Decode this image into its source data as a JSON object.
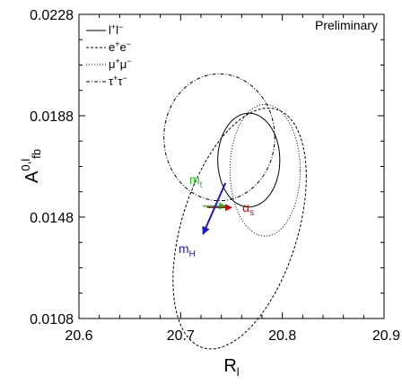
{
  "chart_data": {
    "type": "contour",
    "note": "Preliminary",
    "xlabel": "R_l",
    "ylabel": "A^{0,l}_{fb}",
    "xlim": [
      20.6,
      20.9
    ],
    "ylim": [
      0.0108,
      0.0228
    ],
    "xticks": [
      20.6,
      20.7,
      20.8,
      20.9
    ],
    "yticks": [
      0.0108,
      0.0148,
      0.0188,
      0.0228
    ],
    "xtick_labels": [
      "20.6",
      "20.7",
      "20.8",
      "20.9"
    ],
    "ytick_labels": [
      "0.0108",
      "0.0148",
      "0.0188",
      "0.0228"
    ],
    "legend_position": "top-left",
    "series": [
      {
        "name": "l+l−",
        "style": "solid",
        "center": [
          20.767,
          0.01705
        ],
        "semi_axes": [
          0.0305,
          0.00185
        ],
        "tilt": 0
      },
      {
        "name": "e+e−",
        "style": "dashed",
        "center": [
          20.758,
          0.01435
        ],
        "semi_axes": [
          0.0655,
          0.00475
        ],
        "tilt": 0.43
      },
      {
        "name": "μ+μ−",
        "style": "dotted",
        "center": [
          20.783,
          0.01665
        ],
        "semi_axes": [
          0.0345,
          0.0026
        ],
        "tilt": 0
      },
      {
        "name": "τ+τ−",
        "style": "dashdot",
        "center": [
          20.738,
          0.01795
        ],
        "semi_axes": [
          0.0545,
          0.0025
        ],
        "tilt": 0
      }
    ],
    "arrows": [
      {
        "label": "m_t",
        "color": "#22bb22",
        "from": [
          20.722,
          0.01524
        ],
        "to": [
          20.744,
          0.01524
        ]
      },
      {
        "label": "α_s",
        "color": "#e00000",
        "from": [
          20.726,
          0.01518
        ],
        "to": [
          20.75,
          0.01518
        ]
      },
      {
        "label": "m_H",
        "color": "#1a1acc",
        "from": [
          20.744,
          0.01615
        ],
        "to": [
          20.722,
          0.01413
        ]
      }
    ],
    "legend": [
      {
        "label": "l+l−",
        "style": "solid"
      },
      {
        "label": "e+e−",
        "style": "dashed"
      },
      {
        "label": "μ+μ−",
        "style": "dotted"
      },
      {
        "label": "τ+τ−",
        "style": "dashdot"
      }
    ]
  }
}
